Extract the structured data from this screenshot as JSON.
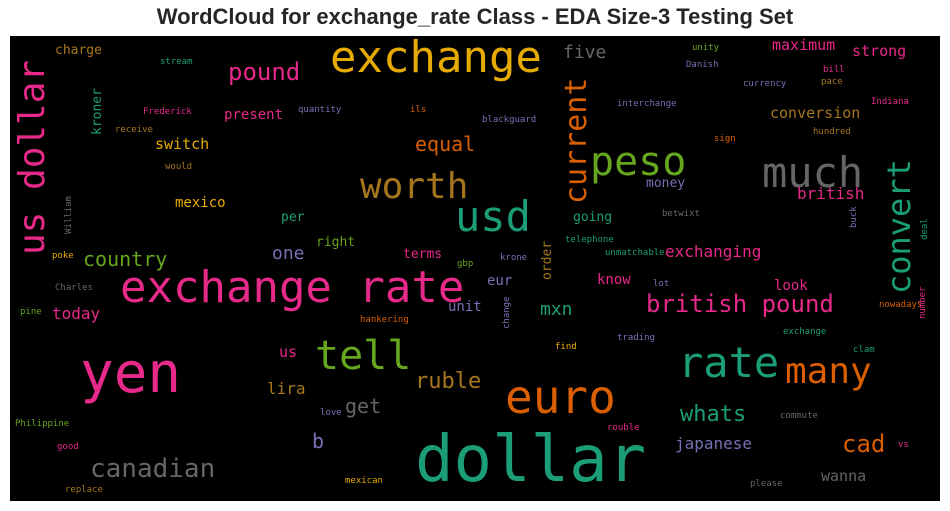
{
  "chart_data": {
    "type": "wordcloud",
    "title": "WordCloud for exchange_rate Class - EDA Size-3 Testing Set",
    "background": "#000000",
    "palette": [
      "#1b9e77",
      "#d95f02",
      "#7570b3",
      "#e7298a",
      "#66a61e",
      "#e6ab02",
      "#a6761d",
      "#666666"
    ],
    "words": [
      {
        "text": "dollar",
        "color": "#1b9e77"
      },
      {
        "text": "exchange rate",
        "color": "#e7298a"
      },
      {
        "text": "yen",
        "color": "#e7298a"
      },
      {
        "text": "exchange",
        "color": "#e6ab02"
      },
      {
        "text": "euro",
        "color": "#d95f02"
      },
      {
        "text": "usd",
        "color": "#1b9e77"
      },
      {
        "text": "peso",
        "color": "#66a61e"
      },
      {
        "text": "much",
        "color": "#666666"
      },
      {
        "text": "rate",
        "color": "#1b9e77"
      },
      {
        "text": "us dollar",
        "color": "#e7298a"
      },
      {
        "text": "tell",
        "color": "#66a61e"
      },
      {
        "text": "many",
        "color": "#d95f02"
      },
      {
        "text": "worth",
        "color": "#a6761d"
      },
      {
        "text": "current",
        "color": "#d95f02"
      },
      {
        "text": "convert",
        "color": "#1b9e77"
      },
      {
        "text": "canadian",
        "color": "#666666"
      },
      {
        "text": "british pound",
        "color": "#e7298a"
      },
      {
        "text": "pound",
        "color": "#e7298a"
      },
      {
        "text": "whats",
        "color": "#1b9e77"
      },
      {
        "text": "ruble",
        "color": "#a6761d"
      },
      {
        "text": "cad",
        "color": "#d95f02"
      },
      {
        "text": "country",
        "color": "#66a61e"
      },
      {
        "text": "equal",
        "color": "#d95f02"
      },
      {
        "text": "get",
        "color": "#666666"
      },
      {
        "text": "b",
        "color": "#7570b3"
      },
      {
        "text": "mxn",
        "color": "#1b9e77"
      },
      {
        "text": "one",
        "color": "#7570b3"
      },
      {
        "text": "today",
        "color": "#e7298a"
      },
      {
        "text": "japanese",
        "color": "#7570b3"
      },
      {
        "text": "lira",
        "color": "#a6761d"
      },
      {
        "text": "exchanging",
        "color": "#e7298a"
      },
      {
        "text": "british",
        "color": "#e7298a"
      },
      {
        "text": "maximum",
        "color": "#e7298a"
      },
      {
        "text": "conversion",
        "color": "#a6761d"
      },
      {
        "text": "five",
        "color": "#666666"
      },
      {
        "text": "strong",
        "color": "#e7298a"
      },
      {
        "text": "switch",
        "color": "#e6ab02"
      },
      {
        "text": "present",
        "color": "#e7298a"
      },
      {
        "text": "mexico",
        "color": "#e6ab02"
      },
      {
        "text": "money",
        "color": "#7570b3"
      },
      {
        "text": "wanna",
        "color": "#666666"
      },
      {
        "text": "us",
        "color": "#e7298a"
      },
      {
        "text": "eur",
        "color": "#7570b3"
      },
      {
        "text": "unit",
        "color": "#7570b3"
      },
      {
        "text": "look",
        "color": "#e7298a"
      },
      {
        "text": "know",
        "color": "#e7298a"
      },
      {
        "text": "charge",
        "color": "#a6761d"
      },
      {
        "text": "kroner",
        "color": "#1b9e77"
      },
      {
        "text": "per",
        "color": "#1b9e77"
      },
      {
        "text": "right",
        "color": "#66a61e"
      },
      {
        "text": "terms",
        "color": "#e7298a"
      },
      {
        "text": "going",
        "color": "#1b9e77"
      },
      {
        "text": "order",
        "color": "#a6761d"
      },
      {
        "text": "stream",
        "color": "#1b9e77"
      },
      {
        "text": "Frederick",
        "color": "#e7298a"
      },
      {
        "text": "receive",
        "color": "#a6761d"
      },
      {
        "text": "would",
        "color": "#a6761d"
      },
      {
        "text": "quantity",
        "color": "#7570b3"
      },
      {
        "text": "ils",
        "color": "#d95f02"
      },
      {
        "text": "blackguard",
        "color": "#7570b3"
      },
      {
        "text": "interchange",
        "color": "#7570b3"
      },
      {
        "text": "unity",
        "color": "#66a61e"
      },
      {
        "text": "Danish",
        "color": "#7570b3"
      },
      {
        "text": "currency",
        "color": "#7570b3"
      },
      {
        "text": "bill",
        "color": "#e7298a"
      },
      {
        "text": "pace",
        "color": "#a6761d"
      },
      {
        "text": "Indiana",
        "color": "#e7298a"
      },
      {
        "text": "sign",
        "color": "#d95f02"
      },
      {
        "text": "hundred",
        "color": "#a6761d"
      },
      {
        "text": "betwixt",
        "color": "#666666"
      },
      {
        "text": "buck",
        "color": "#7570b3"
      },
      {
        "text": "deal",
        "color": "#1b9e77"
      },
      {
        "text": "telephone",
        "color": "#1b9e77"
      },
      {
        "text": "unmatchable",
        "color": "#1b9e77"
      },
      {
        "text": "krone",
        "color": "#7570b3"
      },
      {
        "text": "gbp",
        "color": "#66a61e"
      },
      {
        "text": "William",
        "color": "#666666"
      },
      {
        "text": "poke",
        "color": "#e6ab02"
      },
      {
        "text": "Charles",
        "color": "#666666"
      },
      {
        "text": "pine",
        "color": "#66a61e"
      },
      {
        "text": "hankering",
        "color": "#d95f02"
      },
      {
        "text": "change",
        "color": "#7570b3"
      },
      {
        "text": "lot",
        "color": "#7570b3"
      },
      {
        "text": "nowadays",
        "color": "#d95f02"
      },
      {
        "text": "number",
        "color": "#e7298a"
      },
      {
        "text": "trading",
        "color": "#7570b3"
      },
      {
        "text": "exchange",
        "color": "#1b9e77"
      },
      {
        "text": "find",
        "color": "#e6ab02"
      },
      {
        "text": "clam",
        "color": "#1b9e77"
      },
      {
        "text": "Philippine",
        "color": "#66a61e"
      },
      {
        "text": "love",
        "color": "#7570b3"
      },
      {
        "text": "good",
        "color": "#e7298a"
      },
      {
        "text": "rouble",
        "color": "#e7298a"
      },
      {
        "text": "commute",
        "color": "#666666"
      },
      {
        "text": "vs",
        "color": "#e7298a"
      },
      {
        "text": "replace",
        "color": "#a6761d"
      },
      {
        "text": "mexican",
        "color": "#e6ab02"
      },
      {
        "text": "please",
        "color": "#666666"
      }
    ]
  }
}
